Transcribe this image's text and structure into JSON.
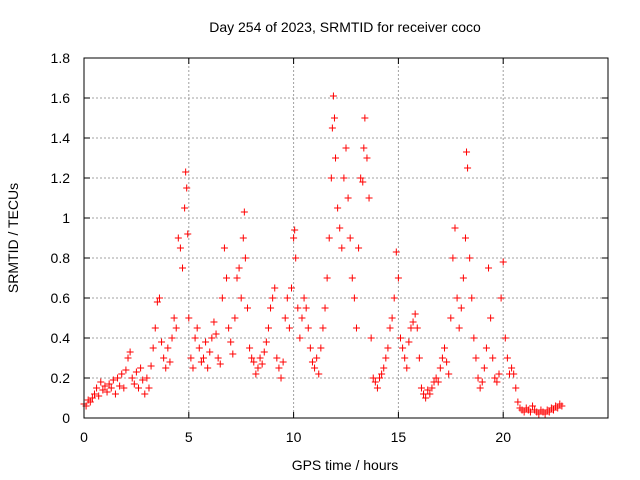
{
  "chart_data": {
    "type": "scatter",
    "title": "Day 254 of 2023, SRMTID for receiver coco",
    "xlabel": "GPS time / hours",
    "ylabel": "SRMTID / TECUs",
    "xlim": [
      0,
      25
    ],
    "ylim": [
      0,
      1.8
    ],
    "xticks": [
      0,
      5,
      10,
      15,
      20
    ],
    "xtick_labels": [
      "0",
      "5",
      "10",
      "15",
      "20"
    ],
    "yticks": [
      0,
      0.2,
      0.4,
      0.6,
      0.8,
      1.0,
      1.2,
      1.4,
      1.6,
      1.8
    ],
    "ytick_labels": [
      "0",
      "0.2",
      "0.4",
      "0.6",
      "0.8",
      "1",
      "1.2",
      "1.4",
      "1.6",
      "1.8"
    ],
    "grid": true,
    "marker": "+",
    "marker_color": "#ff0000",
    "series": [
      {
        "name": "SRMTID",
        "points": [
          [
            0.0,
            0.07
          ],
          [
            0.1,
            0.06
          ],
          [
            0.2,
            0.09
          ],
          [
            0.3,
            0.08
          ],
          [
            0.4,
            0.1
          ],
          [
            0.5,
            0.12
          ],
          [
            0.6,
            0.15
          ],
          [
            0.7,
            0.11
          ],
          [
            0.8,
            0.18
          ],
          [
            0.9,
            0.14
          ],
          [
            1.0,
            0.16
          ],
          [
            1.1,
            0.13
          ],
          [
            1.2,
            0.17
          ],
          [
            1.3,
            0.15
          ],
          [
            1.4,
            0.19
          ],
          [
            1.5,
            0.12
          ],
          [
            1.6,
            0.2
          ],
          [
            1.7,
            0.16
          ],
          [
            1.8,
            0.22
          ],
          [
            1.9,
            0.15
          ],
          [
            2.0,
            0.24
          ],
          [
            2.1,
            0.3
          ],
          [
            2.2,
            0.33
          ],
          [
            2.3,
            0.2
          ],
          [
            2.4,
            0.17
          ],
          [
            2.5,
            0.23
          ],
          [
            2.6,
            0.15
          ],
          [
            2.7,
            0.25
          ],
          [
            2.8,
            0.19
          ],
          [
            2.9,
            0.12
          ],
          [
            3.0,
            0.2
          ],
          [
            3.1,
            0.15
          ],
          [
            3.2,
            0.26
          ],
          [
            3.3,
            0.35
          ],
          [
            3.4,
            0.45
          ],
          [
            3.5,
            0.58
          ],
          [
            3.6,
            0.6
          ],
          [
            3.7,
            0.38
          ],
          [
            3.8,
            0.3
          ],
          [
            3.9,
            0.25
          ],
          [
            4.0,
            0.35
          ],
          [
            4.1,
            0.28
          ],
          [
            4.2,
            0.4
          ],
          [
            4.3,
            0.5
          ],
          [
            4.4,
            0.45
          ],
          [
            4.5,
            0.9
          ],
          [
            4.6,
            0.85
          ],
          [
            4.7,
            0.75
          ],
          [
            4.8,
            1.05
          ],
          [
            4.85,
            1.23
          ],
          [
            4.9,
            1.15
          ],
          [
            4.95,
            0.92
          ],
          [
            5.0,
            0.5
          ],
          [
            5.1,
            0.3
          ],
          [
            5.2,
            0.25
          ],
          [
            5.3,
            0.4
          ],
          [
            5.4,
            0.45
          ],
          [
            5.5,
            0.35
          ],
          [
            5.6,
            0.28
          ],
          [
            5.7,
            0.3
          ],
          [
            5.8,
            0.38
          ],
          [
            5.9,
            0.25
          ],
          [
            6.0,
            0.33
          ],
          [
            6.1,
            0.4
          ],
          [
            6.2,
            0.48
          ],
          [
            6.3,
            0.42
          ],
          [
            6.4,
            0.3
          ],
          [
            6.5,
            0.27
          ],
          [
            6.6,
            0.6
          ],
          [
            6.7,
            0.85
          ],
          [
            6.8,
            0.7
          ],
          [
            6.9,
            0.45
          ],
          [
            7.0,
            0.38
          ],
          [
            7.1,
            0.32
          ],
          [
            7.2,
            0.5
          ],
          [
            7.3,
            0.7
          ],
          [
            7.4,
            0.75
          ],
          [
            7.5,
            0.6
          ],
          [
            7.6,
            0.9
          ],
          [
            7.65,
            1.03
          ],
          [
            7.7,
            0.8
          ],
          [
            7.8,
            0.55
          ],
          [
            7.9,
            0.35
          ],
          [
            8.0,
            0.3
          ],
          [
            8.1,
            0.28
          ],
          [
            8.2,
            0.22
          ],
          [
            8.3,
            0.25
          ],
          [
            8.4,
            0.3
          ],
          [
            8.5,
            0.27
          ],
          [
            8.6,
            0.33
          ],
          [
            8.7,
            0.38
          ],
          [
            8.8,
            0.45
          ],
          [
            8.9,
            0.55
          ],
          [
            9.0,
            0.6
          ],
          [
            9.1,
            0.65
          ],
          [
            9.2,
            0.3
          ],
          [
            9.3,
            0.25
          ],
          [
            9.4,
            0.2
          ],
          [
            9.5,
            0.28
          ],
          [
            9.6,
            0.5
          ],
          [
            9.7,
            0.6
          ],
          [
            9.8,
            0.45
          ],
          [
            9.9,
            0.65
          ],
          [
            10.0,
            0.9
          ],
          [
            10.05,
            0.94
          ],
          [
            10.1,
            0.8
          ],
          [
            10.2,
            0.55
          ],
          [
            10.3,
            0.4
          ],
          [
            10.4,
            0.5
          ],
          [
            10.5,
            0.6
          ],
          [
            10.6,
            0.55
          ],
          [
            10.7,
            0.45
          ],
          [
            10.8,
            0.35
          ],
          [
            10.9,
            0.28
          ],
          [
            11.0,
            0.25
          ],
          [
            11.1,
            0.3
          ],
          [
            11.2,
            0.22
          ],
          [
            11.3,
            0.35
          ],
          [
            11.4,
            0.45
          ],
          [
            11.5,
            0.55
          ],
          [
            11.6,
            0.7
          ],
          [
            11.7,
            0.9
          ],
          [
            11.8,
            1.2
          ],
          [
            11.85,
            1.45
          ],
          [
            11.9,
            1.61
          ],
          [
            11.95,
            1.5
          ],
          [
            12.0,
            1.3
          ],
          [
            12.1,
            1.05
          ],
          [
            12.2,
            0.95
          ],
          [
            12.3,
            0.85
          ],
          [
            12.4,
            1.2
          ],
          [
            12.5,
            1.35
          ],
          [
            12.6,
            1.1
          ],
          [
            12.7,
            0.9
          ],
          [
            12.8,
            0.7
          ],
          [
            12.9,
            0.6
          ],
          [
            13.0,
            0.45
          ],
          [
            13.1,
            0.85
          ],
          [
            13.2,
            1.2
          ],
          [
            13.3,
            1.18
          ],
          [
            13.35,
            1.35
          ],
          [
            13.4,
            1.5
          ],
          [
            13.5,
            1.3
          ],
          [
            13.6,
            1.1
          ],
          [
            13.7,
            0.4
          ],
          [
            13.8,
            0.2
          ],
          [
            13.9,
            0.18
          ],
          [
            14.0,
            0.15
          ],
          [
            14.1,
            0.2
          ],
          [
            14.2,
            0.22
          ],
          [
            14.3,
            0.25
          ],
          [
            14.4,
            0.3
          ],
          [
            14.5,
            0.35
          ],
          [
            14.6,
            0.45
          ],
          [
            14.7,
            0.5
          ],
          [
            14.8,
            0.6
          ],
          [
            14.9,
            0.83
          ],
          [
            15.0,
            0.7
          ],
          [
            15.1,
            0.4
          ],
          [
            15.2,
            0.35
          ],
          [
            15.3,
            0.3
          ],
          [
            15.4,
            0.25
          ],
          [
            15.5,
            0.38
          ],
          [
            15.6,
            0.45
          ],
          [
            15.7,
            0.48
          ],
          [
            15.8,
            0.52
          ],
          [
            15.9,
            0.45
          ],
          [
            16.0,
            0.3
          ],
          [
            16.1,
            0.15
          ],
          [
            16.2,
            0.12
          ],
          [
            16.3,
            0.1
          ],
          [
            16.4,
            0.14
          ],
          [
            16.5,
            0.12
          ],
          [
            16.6,
            0.15
          ],
          [
            16.7,
            0.18
          ],
          [
            16.8,
            0.2
          ],
          [
            16.9,
            0.18
          ],
          [
            17.0,
            0.25
          ],
          [
            17.1,
            0.3
          ],
          [
            17.2,
            0.35
          ],
          [
            17.3,
            0.28
          ],
          [
            17.4,
            0.22
          ],
          [
            17.5,
            0.5
          ],
          [
            17.6,
            0.8
          ],
          [
            17.7,
            0.95
          ],
          [
            17.8,
            0.6
          ],
          [
            17.9,
            0.45
          ],
          [
            18.0,
            0.55
          ],
          [
            18.1,
            0.7
          ],
          [
            18.2,
            0.9
          ],
          [
            18.25,
            1.33
          ],
          [
            18.3,
            1.25
          ],
          [
            18.4,
            0.8
          ],
          [
            18.5,
            0.6
          ],
          [
            18.6,
            0.4
          ],
          [
            18.7,
            0.3
          ],
          [
            18.8,
            0.2
          ],
          [
            18.9,
            0.15
          ],
          [
            19.0,
            0.18
          ],
          [
            19.1,
            0.25
          ],
          [
            19.2,
            0.35
          ],
          [
            19.3,
            0.75
          ],
          [
            19.4,
            0.5
          ],
          [
            19.5,
            0.3
          ],
          [
            19.6,
            0.2
          ],
          [
            19.7,
            0.18
          ],
          [
            19.8,
            0.22
          ],
          [
            19.9,
            0.6
          ],
          [
            20.0,
            0.78
          ],
          [
            20.1,
            0.4
          ],
          [
            20.2,
            0.3
          ],
          [
            20.3,
            0.22
          ],
          [
            20.4,
            0.25
          ],
          [
            20.5,
            0.22
          ],
          [
            20.6,
            0.15
          ],
          [
            20.7,
            0.08
          ],
          [
            20.8,
            0.05
          ],
          [
            20.9,
            0.04
          ],
          [
            21.0,
            0.03
          ],
          [
            21.1,
            0.05
          ],
          [
            21.2,
            0.04
          ],
          [
            21.3,
            0.03
          ],
          [
            21.4,
            0.06
          ],
          [
            21.5,
            0.04
          ],
          [
            21.6,
            0.03
          ],
          [
            21.7,
            0.02
          ],
          [
            21.8,
            0.04
          ],
          [
            21.9,
            0.03
          ],
          [
            22.0,
            0.02
          ],
          [
            22.1,
            0.04
          ],
          [
            22.2,
            0.03
          ],
          [
            22.3,
            0.05
          ],
          [
            22.4,
            0.04
          ],
          [
            22.5,
            0.06
          ],
          [
            22.6,
            0.05
          ],
          [
            22.7,
            0.07
          ],
          [
            22.8,
            0.06
          ]
        ]
      }
    ]
  }
}
